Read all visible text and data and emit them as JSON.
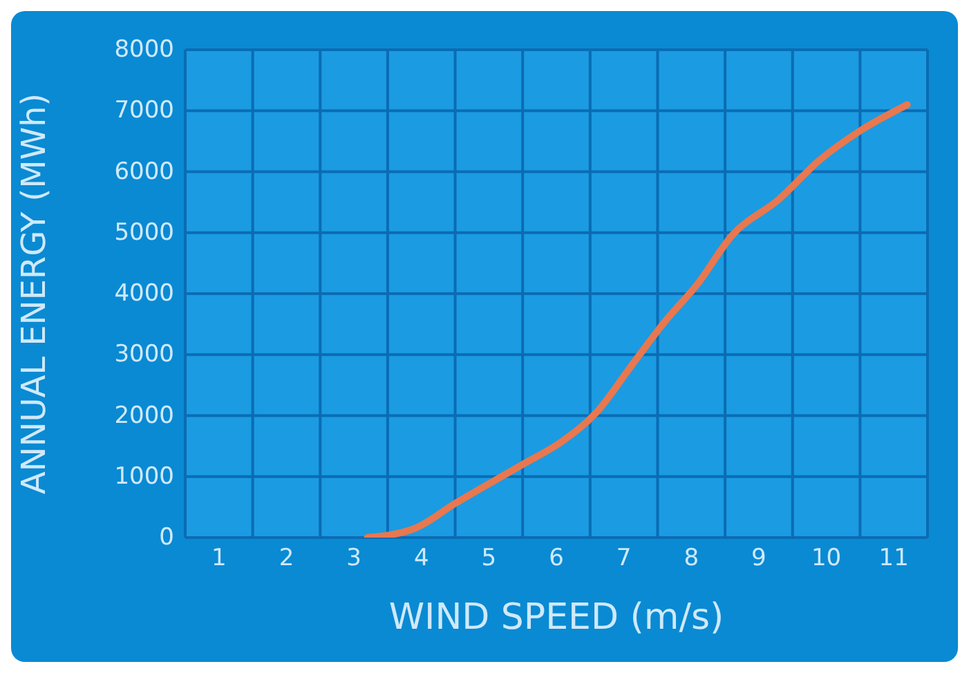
{
  "chart_data": {
    "type": "line",
    "xlabel": "WIND SPEED (m/s)",
    "ylabel": "ANNUAL ENERGY (MWh)",
    "x": [
      3.2,
      3.9,
      4.5,
      5.5,
      6.1,
      6.6,
      7.1,
      7.6,
      8.1,
      8.6,
      9.3,
      9.9,
      10.5,
      11.2
    ],
    "series": [
      {
        "color": "#e8784f",
        "values": [
          0,
          150,
          560,
          1200,
          1590,
          2060,
          2800,
          3530,
          4170,
          4950,
          5550,
          6190,
          6670,
          7100
        ]
      }
    ],
    "xlim": [
      0.5,
      11.5
    ],
    "xticks": [
      1,
      2,
      3,
      4,
      5,
      6,
      7,
      8,
      9,
      10,
      11
    ],
    "ylim": [
      0,
      8000
    ],
    "yticks": [
      0,
      1000,
      2000,
      3000,
      4000,
      5000,
      6000,
      7000,
      8000
    ],
    "grid": true,
    "marker": "none",
    "line_style": "solid"
  }
}
